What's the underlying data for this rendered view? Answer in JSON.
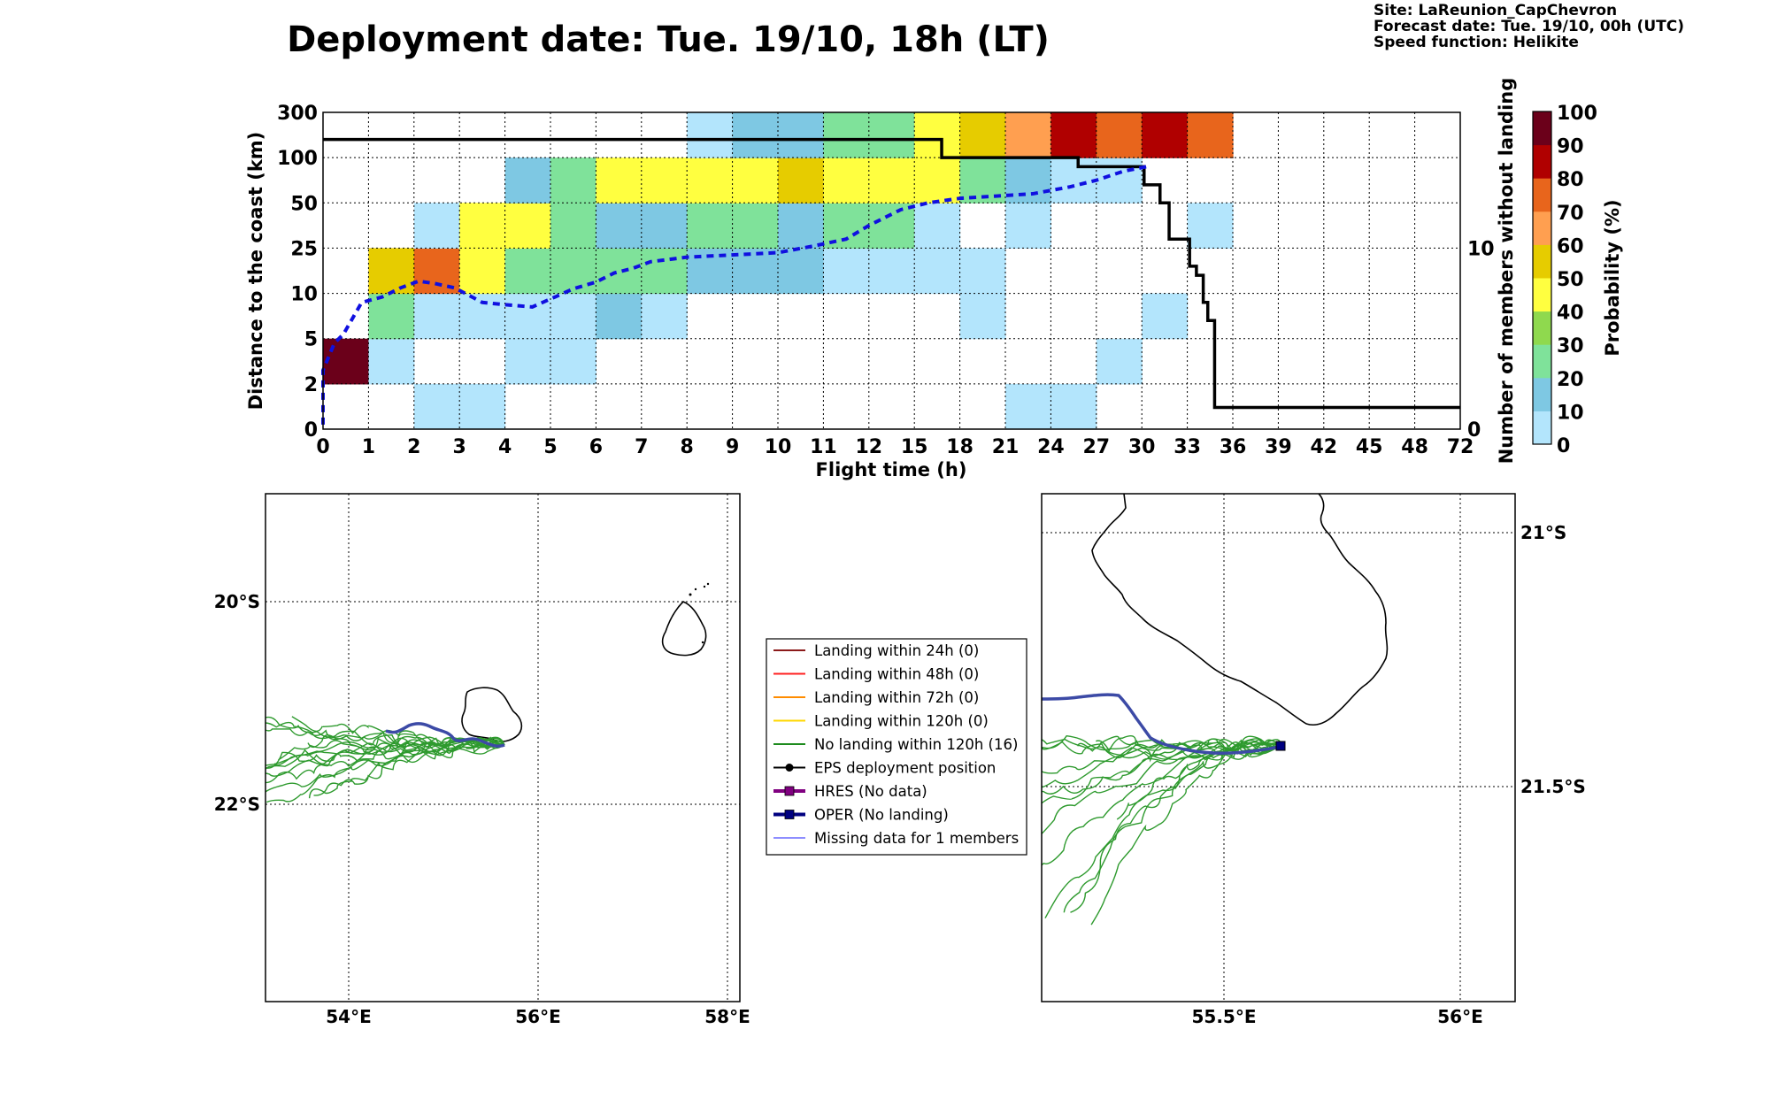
{
  "header": {
    "title": "Deployment date: Tue. 19/10, 18h (LT)",
    "site": "Site: LaReunion_CapChevron",
    "forecast": "Forecast date: Tue. 19/10, 00h (UTC)",
    "speed": "Speed function: Helikite"
  },
  "chart_data": [
    {
      "type": "heatmap",
      "title": "",
      "xlabel": "Flight time (h)",
      "ylabel": "Distance to the coast (km)",
      "y2label": "Number of members without landing",
      "x_ticks": [
        "0",
        "1",
        "2",
        "3",
        "4",
        "5",
        "6",
        "7",
        "8",
        "9",
        "10",
        "11",
        "12",
        "15",
        "18",
        "21",
        "24",
        "27",
        "30",
        "33",
        "36",
        "39",
        "42",
        "45",
        "48",
        "72"
      ],
      "y_ticks": [
        "0",
        "2",
        "5",
        "10",
        "25",
        "50",
        "100",
        "300"
      ],
      "y2_ticks": [
        "0",
        "10"
      ],
      "y2lim": [
        0,
        17.5
      ],
      "colorbar": {
        "label": "Probability (%)",
        "ticks": [
          "0",
          "10",
          "20",
          "30",
          "40",
          "50",
          "60",
          "70",
          "80",
          "90",
          "100"
        ],
        "colors": [
          "#b3e5fc",
          "#7ec8e3",
          "#7fe29a",
          "#8fd94e",
          "#ffff40",
          "#e6cc00",
          "#ff9f50",
          "#e8651c",
          "#b00000",
          "#6b001a"
        ]
      },
      "grid": true,
      "cells": [
        [
          0,
          1,
          "#6b001a"
        ],
        [
          1,
          1,
          "#b3e5fc"
        ],
        [
          2,
          0,
          "#b3e5fc"
        ],
        [
          3,
          0,
          "#b3e5fc"
        ],
        [
          4,
          1,
          "#b3e5fc"
        ],
        [
          5,
          1,
          "#b3e5fc"
        ],
        [
          1,
          2,
          "#7fe29a"
        ],
        [
          2,
          2,
          "#b3e5fc"
        ],
        [
          3,
          2,
          "#b3e5fc"
        ],
        [
          4,
          2,
          "#b3e5fc"
        ],
        [
          5,
          2,
          "#b3e5fc"
        ],
        [
          6,
          2,
          "#7ec8e3"
        ],
        [
          7,
          2,
          "#b3e5fc"
        ],
        [
          1,
          3,
          "#e6cc00"
        ],
        [
          2,
          3,
          "#e8651c"
        ],
        [
          3,
          3,
          "#ffff40"
        ],
        [
          4,
          3,
          "#7fe29a"
        ],
        [
          5,
          3,
          "#7fe29a"
        ],
        [
          6,
          3,
          "#7fe29a"
        ],
        [
          7,
          3,
          "#7fe29a"
        ],
        [
          8,
          3,
          "#7ec8e3"
        ],
        [
          9,
          3,
          "#7ec8e3"
        ],
        [
          10,
          3,
          "#7ec8e3"
        ],
        [
          11,
          3,
          "#b3e5fc"
        ],
        [
          12,
          3,
          "#b3e5fc"
        ],
        [
          13,
          3,
          "#b3e5fc"
        ],
        [
          14,
          3,
          "#b3e5fc"
        ],
        [
          2,
          4,
          "#b3e5fc"
        ],
        [
          3,
          4,
          "#ffff40"
        ],
        [
          4,
          4,
          "#ffff40"
        ],
        [
          5,
          4,
          "#7fe29a"
        ],
        [
          6,
          4,
          "#7ec8e3"
        ],
        [
          7,
          4,
          "#7ec8e3"
        ],
        [
          8,
          4,
          "#7fe29a"
        ],
        [
          9,
          4,
          "#7fe29a"
        ],
        [
          10,
          4,
          "#7ec8e3"
        ],
        [
          11,
          4,
          "#7fe29a"
        ],
        [
          12,
          4,
          "#7fe29a"
        ],
        [
          13,
          4,
          "#b3e5fc"
        ],
        [
          15,
          4,
          "#b3e5fc"
        ],
        [
          19,
          4,
          "#b3e5fc"
        ],
        [
          4,
          5,
          "#7ec8e3"
        ],
        [
          5,
          5,
          "#7fe29a"
        ],
        [
          6,
          5,
          "#ffff40"
        ],
        [
          7,
          5,
          "#ffff40"
        ],
        [
          8,
          5,
          "#ffff40"
        ],
        [
          9,
          5,
          "#ffff40"
        ],
        [
          10,
          5,
          "#e6cc00"
        ],
        [
          11,
          5,
          "#ffff40"
        ],
        [
          12,
          5,
          "#ffff40"
        ],
        [
          13,
          5,
          "#ffff40"
        ],
        [
          14,
          5,
          "#7fe29a"
        ],
        [
          15,
          5,
          "#7ec8e3"
        ],
        [
          16,
          5,
          "#b3e5fc"
        ],
        [
          17,
          5,
          "#b3e5fc"
        ],
        [
          8,
          6,
          "#b3e5fc"
        ],
        [
          9,
          6,
          "#7ec8e3"
        ],
        [
          10,
          6,
          "#7ec8e3"
        ],
        [
          11,
          6,
          "#7fe29a"
        ],
        [
          12,
          6,
          "#7fe29a"
        ],
        [
          13,
          6,
          "#ffff40"
        ],
        [
          14,
          6,
          "#e6cc00"
        ],
        [
          15,
          6,
          "#ff9f50"
        ],
        [
          16,
          6,
          "#b00000"
        ],
        [
          17,
          6,
          "#e8651c"
        ],
        [
          18,
          6,
          "#b00000"
        ],
        [
          19,
          6,
          "#e8651c"
        ],
        [
          14,
          2,
          "#b3e5fc"
        ],
        [
          18,
          2,
          "#b3e5fc"
        ],
        [
          17,
          1,
          "#b3e5fc"
        ],
        [
          15,
          0,
          "#b3e5fc"
        ],
        [
          16,
          0,
          "#b3e5fc"
        ]
      ],
      "series": [
        {
          "name": "",
          "style": "black-step",
          "points": [
            [
              0,
              16
            ],
            [
              13.6,
              16
            ],
            [
              13.6,
              15
            ],
            [
              16.6,
              15
            ],
            [
              16.6,
              14.5
            ],
            [
              18.05,
              14.5
            ],
            [
              18.05,
              13.5
            ],
            [
              18.4,
              13.5
            ],
            [
              18.4,
              12.5
            ],
            [
              18.6,
              12.5
            ],
            [
              18.6,
              10.5
            ],
            [
              19.05,
              10.5
            ],
            [
              19.05,
              9
            ],
            [
              19.2,
              9
            ],
            [
              19.2,
              8.5
            ],
            [
              19.35,
              8.5
            ],
            [
              19.35,
              7
            ],
            [
              19.45,
              7
            ],
            [
              19.45,
              6
            ],
            [
              19.6,
              6
            ],
            [
              19.6,
              1.2
            ],
            [
              25,
              1.2
            ]
          ]
        },
        {
          "name": "",
          "style": "blue-dashed",
          "points": [
            [
              0,
              0.1
            ],
            [
              0,
              1.3
            ],
            [
              0.25,
              1.9
            ],
            [
              0.45,
              2.1
            ],
            [
              0.85,
              2.8
            ],
            [
              1.3,
              2.92
            ],
            [
              1.7,
              3.12
            ],
            [
              2.1,
              3.27
            ],
            [
              2.45,
              3.22
            ],
            [
              2.9,
              3.12
            ],
            [
              3.5,
              2.8
            ],
            [
              4.0,
              2.75
            ],
            [
              4.6,
              2.7
            ],
            [
              5.1,
              2.92
            ],
            [
              5.5,
              3.1
            ],
            [
              6.0,
              3.25
            ],
            [
              6.4,
              3.45
            ],
            [
              6.8,
              3.55
            ],
            [
              7.2,
              3.7
            ],
            [
              8.0,
              3.8
            ],
            [
              9.0,
              3.85
            ],
            [
              10.0,
              3.9
            ],
            [
              10.8,
              4.05
            ],
            [
              11.5,
              4.2
            ],
            [
              12.0,
              4.5
            ],
            [
              12.7,
              4.85
            ],
            [
              13.3,
              5.0
            ],
            [
              14.0,
              5.1
            ],
            [
              14.8,
              5.15
            ],
            [
              15.6,
              5.2
            ],
            [
              16.4,
              5.35
            ],
            [
              17.0,
              5.5
            ],
            [
              17.6,
              5.7
            ],
            [
              18.1,
              5.8
            ]
          ]
        }
      ]
    },
    {
      "type": "map",
      "x_ticks": [
        "54°E",
        "56°E",
        "58°E"
      ],
      "y_ticks": [
        "20°S",
        "22°S"
      ],
      "xlim": [
        53.15,
        58.15
      ],
      "ylim": [
        -23.95,
        -18.95
      ]
    },
    {
      "type": "map",
      "x_ticks": [
        "55.5°E",
        "56°E"
      ],
      "y_ticks": [
        "21°S",
        "21.5°S"
      ],
      "xlim": [
        55.1,
        56.12
      ],
      "ylim": [
        -21.96,
        -20.93
      ]
    }
  ],
  "legend": {
    "items": [
      {
        "label": "Landing within 24h (0)",
        "color": "#8b1a1a",
        "marker": "none",
        "width": 2
      },
      {
        "label": "Landing within 48h (0)",
        "color": "#ff2020",
        "marker": "none",
        "width": 2
      },
      {
        "label": "Landing within 72h (0)",
        "color": "#ff8c00",
        "marker": "none",
        "width": 2
      },
      {
        "label": "Landing within 120h (0)",
        "color": "#ffd700",
        "marker": "none",
        "width": 2
      },
      {
        "label": "No landing within 120h (16)",
        "color": "#1e8b1e",
        "marker": "none",
        "width": 2
      },
      {
        "label": "EPS deployment position",
        "color": "#000000",
        "marker": "circle",
        "width": 2
      },
      {
        "label": "HRES (No data)",
        "color": "#800080",
        "marker": "square",
        "width": 4
      },
      {
        "label": "OPER (No landing)",
        "color": "#000080",
        "marker": "square",
        "width": 4
      },
      {
        "label": "Missing data for 1 members",
        "color": "#4a4aff",
        "marker": "none",
        "width": 1.2
      }
    ]
  },
  "colors": {
    "trajectory_green": "#2e9a2e",
    "oper_blue": "#3c4aa6",
    "black_step": "#000000",
    "blue_dash": "#1010e0"
  }
}
